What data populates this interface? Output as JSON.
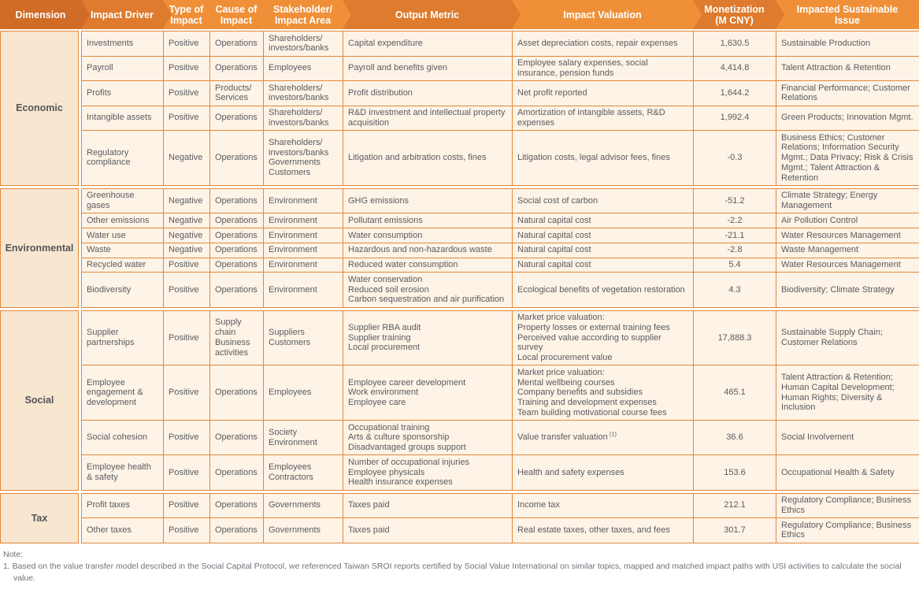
{
  "colors": {
    "header_dimension": "#d06c27",
    "header_dark": "#de7b2e",
    "header_light": "#ef9039",
    "border": "#e0883a",
    "cell_bg": "#fdf3e6",
    "dimension_bg": "#f8e6d0",
    "body_text": "#595c60",
    "header_text": "#ffffff",
    "note_text": "#6d737b"
  },
  "table": {
    "columns": [
      {
        "label": "Dimension",
        "shade": "dimension"
      },
      {
        "label": "Impact Driver",
        "shade": "dark"
      },
      {
        "label": "Type of\nImpact",
        "shade": "light"
      },
      {
        "label": "Cause of\nImpact",
        "shade": "light"
      },
      {
        "label": "Stakeholder/\nImpact Area",
        "shade": "light"
      },
      {
        "label": "Output Metric",
        "shade": "dark"
      },
      {
        "label": "Impact Valuation",
        "shade": "light"
      },
      {
        "label": "Monetization\n(M CNY)",
        "shade": "dark"
      },
      {
        "label": "Impacted Sustainable\nIssue",
        "shade": "light"
      }
    ],
    "sections": [
      {
        "dimension": "Economic",
        "rows": [
          {
            "driver": "Investments",
            "type": "Positive",
            "cause": "Operations",
            "stakeholder": "Shareholders/\ninvestors/banks",
            "output": "Capital expenditure",
            "valuation": "Asset depreciation costs, repair expenses",
            "monetization": "1,630.5",
            "issue": "Sustainable Production"
          },
          {
            "driver": "Payroll",
            "type": "Positive",
            "cause": "Operations",
            "stakeholder": "Employees",
            "output": "Payroll and benefits given",
            "valuation": "Employee salary expenses, social insurance, pension funds",
            "monetization": "4,414.8",
            "issue": "Talent Attraction & Retention"
          },
          {
            "driver": "Profits",
            "type": "Positive",
            "cause": "Products/\nServices",
            "stakeholder": "Shareholders/\ninvestors/banks",
            "output": "Profit distribution",
            "valuation": "Net profit reported",
            "monetization": "1,644.2",
            "issue": "Financial Performance; Customer Relations"
          },
          {
            "driver": "Intangible assets",
            "type": "Positive",
            "cause": "Operations",
            "stakeholder": "Shareholders/\ninvestors/banks",
            "output": "R&D investment and intellectual property acquisition",
            "valuation": "Amortization of intangible assets, R&D expenses",
            "monetization": "1,992.4",
            "issue": "Green Products; Innovation Mgmt."
          },
          {
            "driver": "Regulatory compliance",
            "type": "Negative",
            "cause": "Operations",
            "stakeholder": "Shareholders/\ninvestors/banks\nGovernments\nCustomers",
            "output": "Litigation and arbitration costs, fines",
            "valuation": "Litigation costs, legal advisor fees, fines",
            "monetization": "-0.3",
            "issue": "Business Ethics; Customer Relations; Information Security Mgmt.; Data Privacy; Risk & Crisis Mgmt.; Talent Attraction & Retention"
          }
        ]
      },
      {
        "dimension": "Environmental",
        "rows": [
          {
            "driver": "Greenhouse gases",
            "type": "Negative",
            "cause": "Operations",
            "stakeholder": "Environment",
            "output": "GHG emissions",
            "valuation": "Social cost of carbon",
            "monetization": "-51.2",
            "issue": "Climate Strategy; Energy Management"
          },
          {
            "driver": "Other emissions",
            "type": "Negative",
            "cause": "Operations",
            "stakeholder": "Environment",
            "output": "Pollutant emissions",
            "valuation": "Natural capital cost",
            "monetization": "-2.2",
            "issue": "Air Pollution Control"
          },
          {
            "driver": "Water use",
            "type": "Negative",
            "cause": "Operations",
            "stakeholder": "Environment",
            "output": "Water consumption",
            "valuation": "Natural capital cost",
            "monetization": "-21.1",
            "issue": "Water Resources Management"
          },
          {
            "driver": "Waste",
            "type": "Negative",
            "cause": "Operations",
            "stakeholder": "Environment",
            "output": "Hazardous and non-hazardous waste",
            "valuation": "Natural capital cost",
            "monetization": "-2.8",
            "issue": "Waste Management"
          },
          {
            "driver": "Recycled water",
            "type": "Positive",
            "cause": "Operations",
            "stakeholder": "Environment",
            "output": "Reduced water consumption",
            "valuation": "Natural capital cost",
            "monetization": "5.4",
            "issue": "Water Resources Management"
          },
          {
            "driver": "Biodiversity",
            "type": "Positive",
            "cause": "Operations",
            "stakeholder": "Environment",
            "output": "Water conservation\nReduced soil erosion\nCarbon sequestration and air purification",
            "valuation": "Ecological benefits of vegetation restoration",
            "monetization": "4.3",
            "issue": "Biodiversity; Climate Strategy"
          }
        ]
      },
      {
        "dimension": "Social",
        "rows": [
          {
            "driver": "Supplier partnerships",
            "type": "Positive",
            "cause": "Supply chain\nBusiness activities",
            "stakeholder": "Suppliers\nCustomers",
            "output": "Supplier RBA audit\nSupplier training\nLocal procurement",
            "valuation": "Market price valuation:\nProperty losses or external training fees\nPerceived value according to supplier survey\nLocal procurement value",
            "monetization": "17,888.3",
            "issue": "Sustainable Supply Chain; Customer Relations"
          },
          {
            "driver": "Employee engagement & development",
            "type": "Positive",
            "cause": "Operations",
            "stakeholder": "Employees",
            "output": "Employee career development\nWork environment\nEmployee care",
            "valuation": "Market price valuation:\nMental wellbeing courses\nCompany benefits and subsidies\nTraining and development expenses\nTeam building motivational course fees",
            "monetization": "465.1",
            "issue": "Talent Attraction & Retention; Human Capital Development; Human Rights; Diversity & Inclusion"
          },
          {
            "driver": "Social cohesion",
            "type": "Positive",
            "cause": "Operations",
            "stakeholder": "Society\nEnvironment",
            "output": "Occupational training\nArts & culture sponsorship\nDisadvantaged groups support",
            "valuation": "Value transfer valuation",
            "valuation_sup": "(1)",
            "monetization": "36.6",
            "issue": "Social Involvement"
          },
          {
            "driver": "Employee health & safety",
            "type": "Positive",
            "cause": "Operations",
            "stakeholder": "Employees\nContractors",
            "output": "Number of occupational injuries\nEmployee physicals\nHealth insurance expenses",
            "valuation": "Health and safety expenses",
            "monetization": "153.6",
            "issue": "Occupational Health & Safety"
          }
        ]
      },
      {
        "dimension": "Tax",
        "rows": [
          {
            "driver": "Profit taxes",
            "type": "Positive",
            "cause": "Operations",
            "stakeholder": "Governments",
            "output": "Taxes paid",
            "valuation": "Income tax",
            "monetization": "212.1",
            "issue": "Regulatory Compliance; Business Ethics"
          },
          {
            "driver": "Other taxes",
            "type": "Positive",
            "cause": "Operations",
            "stakeholder": "Governments",
            "output": "Taxes paid",
            "valuation": "Real estate taxes, other taxes, and fees",
            "monetization": "301.7",
            "issue": "Regulatory Compliance; Business Ethics"
          }
        ]
      }
    ]
  },
  "note": {
    "label": "Note:",
    "item": "1. Based on the value transfer model described in the Social Capital Protocol, we referenced Taiwan SROI reports certified by Social Value International on similar topics, mapped and matched impact paths with USI activities to calculate the social value."
  }
}
